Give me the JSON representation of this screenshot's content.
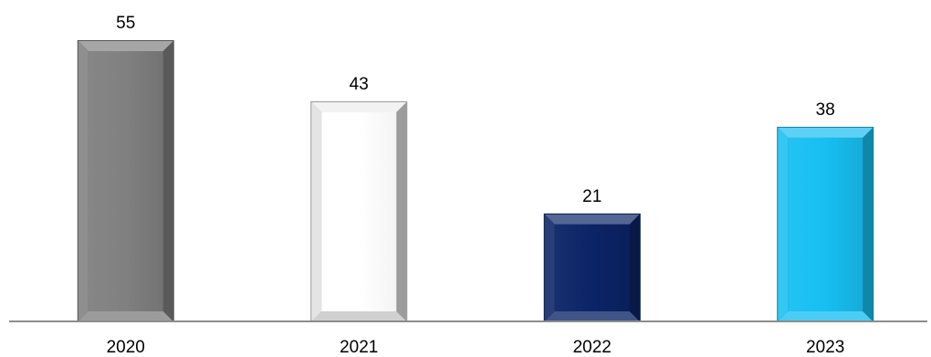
{
  "chart_data": {
    "type": "bar",
    "categories": [
      "2020",
      "2021",
      "2022",
      "2023"
    ],
    "values": [
      55,
      43,
      21,
      38
    ],
    "value_labels": [
      "55",
      "43",
      "21",
      "38"
    ],
    "colors": [
      "#808080",
      "#ffffff",
      "#0b2466",
      "#17bff2"
    ],
    "title": "",
    "xlabel": "",
    "ylabel": "",
    "ylim": [
      0,
      55
    ],
    "grid": false,
    "legend": "none",
    "axis_color": "#8c8c8c"
  }
}
